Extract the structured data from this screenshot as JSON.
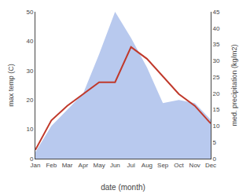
{
  "chart_data": {
    "type": "line",
    "xlabel": "date (month)",
    "ylabel": "max temp (C)",
    "y2label": "med. precipitation (kg/m2)",
    "categories": [
      "Jan",
      "Feb",
      "Mar",
      "Apr",
      "May",
      "Jun",
      "Jul",
      "Aug",
      "Sep",
      "Oct",
      "Nov",
      "Dec"
    ],
    "series": [
      {
        "type": "area",
        "color": "#b8c9ee",
        "axis": "y2",
        "values": [
          2,
          10,
          15,
          20,
          32,
          45,
          37,
          28,
          17,
          18,
          17,
          12
        ]
      },
      {
        "type": "line",
        "color": "#c0392b",
        "values": [
          3,
          13,
          18,
          22,
          26,
          26,
          38,
          34,
          28,
          22,
          18,
          12
        ]
      }
    ],
    "ylim": [
      0,
      50
    ],
    "yticks": [
      0,
      10,
      20,
      30,
      40,
      50
    ],
    "y2lim": [
      0,
      45
    ],
    "y2ticks": [
      0,
      5,
      10,
      15,
      20,
      25,
      30,
      35,
      40,
      45
    ],
    "grid": false
  }
}
